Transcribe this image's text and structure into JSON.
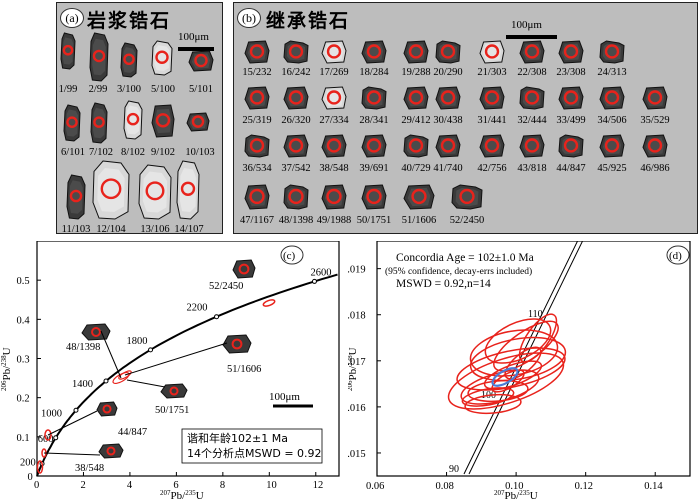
{
  "panel_a": {
    "tag": "(a)",
    "title": "岩浆锆石",
    "scale": "100μm",
    "grains": [
      "1/99",
      "2/99",
      "3/100",
      "5/100",
      "5/101",
      "6/101",
      "7/102",
      "8/102",
      "9/102",
      "10/103",
      "11/103",
      "12/104",
      "13/106",
      "14/107"
    ]
  },
  "panel_b": {
    "tag": "(b)",
    "title": "继承锆石",
    "scale": "100μm",
    "grains": [
      "15/232",
      "16/242",
      "17/269",
      "18/284",
      "19/288",
      "20/290",
      "21/303",
      "22/308",
      "23/308",
      "24/313",
      "25/319",
      "26/320",
      "27/334",
      "28/341",
      "29/412",
      "30/438",
      "31/441",
      "32/444",
      "33/499",
      "34/506",
      "35/529",
      "36/534",
      "37/542",
      "38/548",
      "39/691",
      "40/729",
      "41/740",
      "42/756",
      "43/818",
      "44/847",
      "45/925",
      "46/986",
      "47/1167",
      "48/1398",
      "49/1988",
      "50/1751",
      "51/1606",
      "52/2450"
    ]
  },
  "panel_c": {
    "tag": "(c)",
    "xlabel_pb": "207",
    "xlabel_iso": "Pb/",
    "xlabel_u": "235",
    "xlabel_end": "U",
    "ylabel_pb": "206",
    "ylabel_iso": "Pb/",
    "ylabel_u": "238",
    "ylabel_end": "U",
    "scale": "100μm",
    "legend_line1": "谐和年龄102±1 Ma",
    "legend_line2": "14个分析点MSWD = 0.92",
    "grain_labels": [
      "52/2450",
      "48/1398",
      "51/1606",
      "50/1751",
      "44/847",
      "38/548"
    ]
  },
  "panel_d": {
    "tag": "(d)",
    "line1": "Concordia Age = 102±1.0 Ma",
    "line2": "(95% confidence, decay-errs included)",
    "line3": "MSWD = 0.92,n=14"
  },
  "chart_data": [
    {
      "type": "scatter",
      "title": "Concordia diagram (c)",
      "xlabel": "207Pb/235U",
      "ylabel": "206Pb/238U",
      "xlim": [
        0,
        13
      ],
      "ylim": [
        0,
        0.6
      ],
      "x_ticks": [
        "0",
        "2",
        "4",
        "6",
        "8",
        "10",
        "12"
      ],
      "y_ticks": [
        "0",
        "0.1",
        "0.2",
        "0.3",
        "0.4",
        "0.5"
      ],
      "concordia_age_labels": [
        "200",
        "600",
        "1000",
        "1400",
        "1800",
        "2200",
        "2600"
      ],
      "points": [
        {
          "label": "52/2450",
          "x": 10.1,
          "y": 0.465
        },
        {
          "label": "48/1398",
          "x": 3.0,
          "y": 0.245
        },
        {
          "label": "51/1606",
          "x": 3.3,
          "y": 0.26
        },
        {
          "label": "50/1751",
          "x": 3.2,
          "y": 0.24
        },
        {
          "label": "44/847",
          "x": 0.7,
          "y": 0.14
        },
        {
          "label": "38/548",
          "x": 0.6,
          "y": 0.09
        }
      ]
    },
    {
      "type": "scatter",
      "title": "Concordia diagram (d)",
      "xlabel": "207Pb/235U",
      "ylabel": "206Pb/238U",
      "xlim": [
        0.06,
        0.15
      ],
      "ylim": [
        0.0145,
        0.0196
      ],
      "x_ticks": [
        "0.06",
        "0.08",
        "0.10",
        "0.12",
        "0.14"
      ],
      "y_ticks": [
        "0.015",
        "0.016",
        "0.017",
        "0.018",
        "0.019"
      ],
      "concordia_age_labels": [
        "90",
        "100",
        "110"
      ],
      "concordia_age": "102±1.0 Ma",
      "mswd": 0.92,
      "n": 14
    }
  ]
}
